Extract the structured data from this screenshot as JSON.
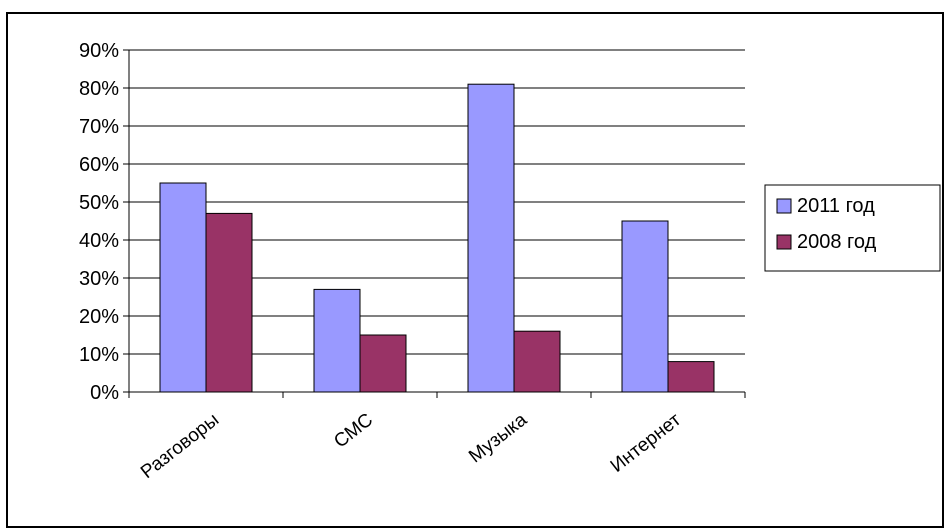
{
  "chart_data": {
    "type": "bar",
    "categories": [
      "Разговоры",
      "СМС",
      "Музыка",
      "Интернет"
    ],
    "series": [
      {
        "name": "2011 год",
        "values": [
          55,
          27,
          81,
          45
        ],
        "color": "#9999ff"
      },
      {
        "name": "2008 год",
        "values": [
          47,
          15,
          16,
          8
        ],
        "color": "#993366"
      }
    ],
    "yticks": [
      "0%",
      "10%",
      "20%",
      "30%",
      "40%",
      "50%",
      "60%",
      "70%",
      "80%",
      "90%"
    ],
    "ylim": [
      0,
      90
    ],
    "grid": true,
    "legend_position": "right"
  }
}
